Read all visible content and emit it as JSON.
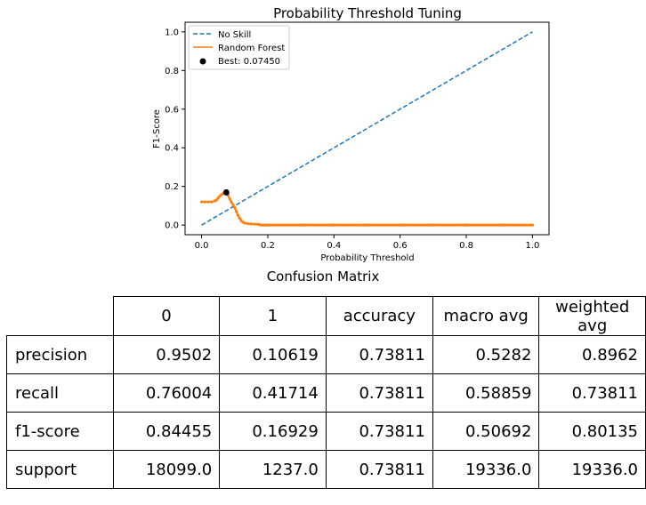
{
  "chart_data": {
    "type": "line",
    "title": "Probability Threshold Tuning",
    "xlabel": "Probability Threshold",
    "ylabel": "F1-Score",
    "xlim": [
      -0.05,
      1.05
    ],
    "ylim": [
      -0.05,
      1.05
    ],
    "xticks": [
      "0.0",
      "0.2",
      "0.4",
      "0.6",
      "0.8",
      "1.0"
    ],
    "yticks": [
      "0.0",
      "0.2",
      "0.4",
      "0.6",
      "0.8",
      "1.0"
    ],
    "grid": false,
    "legend_position": "top-left",
    "series": [
      {
        "name": "No Skill",
        "style": "dashed",
        "color": "#1f77b4",
        "x": [
          0,
          1
        ],
        "y": [
          0,
          1
        ]
      },
      {
        "name": "Random Forest",
        "style": "solid-markers",
        "color": "#ff7f0e",
        "x": [
          0.0,
          0.01,
          0.02,
          0.03,
          0.04,
          0.045,
          0.05,
          0.055,
          0.06,
          0.065,
          0.07,
          0.0745,
          0.08,
          0.085,
          0.09,
          0.095,
          0.1,
          0.105,
          0.11,
          0.115,
          0.12,
          0.125,
          0.13,
          0.14,
          0.15,
          0.16,
          0.17,
          0.175,
          0.18,
          0.2,
          0.3,
          0.4,
          0.5,
          0.6,
          0.7,
          0.8,
          0.9,
          1.0
        ],
        "y": [
          0.12,
          0.12,
          0.12,
          0.12,
          0.125,
          0.13,
          0.14,
          0.15,
          0.158,
          0.163,
          0.168,
          0.169,
          0.155,
          0.135,
          0.118,
          0.105,
          0.09,
          0.07,
          0.05,
          0.035,
          0.022,
          0.015,
          0.01,
          0.007,
          0.006,
          0.005,
          0.004,
          0.002,
          0.0,
          0.0,
          0.0,
          0.0,
          0.0,
          0.0,
          0.0,
          0.0,
          0.0,
          0.0
        ]
      }
    ],
    "best_point": {
      "label": "Best: 0.07450",
      "x": 0.0745,
      "y": 0.169,
      "color": "#000000"
    }
  },
  "table": {
    "title": "Confusion Matrix",
    "columns": [
      "0",
      "1",
      "accuracy",
      "macro avg",
      "weighted avg"
    ],
    "rows": [
      {
        "label": "precision",
        "values": [
          "0.9502",
          "0.10619",
          "0.73811",
          "0.5282",
          "0.8962"
        ]
      },
      {
        "label": "recall",
        "values": [
          "0.76004",
          "0.41714",
          "0.73811",
          "0.58859",
          "0.73811"
        ]
      },
      {
        "label": "f1-score",
        "values": [
          "0.84455",
          "0.16929",
          "0.73811",
          "0.50692",
          "0.80135"
        ]
      },
      {
        "label": "support",
        "values": [
          "18099.0",
          "1237.0",
          "0.73811",
          "19336.0",
          "19336.0"
        ]
      }
    ]
  }
}
